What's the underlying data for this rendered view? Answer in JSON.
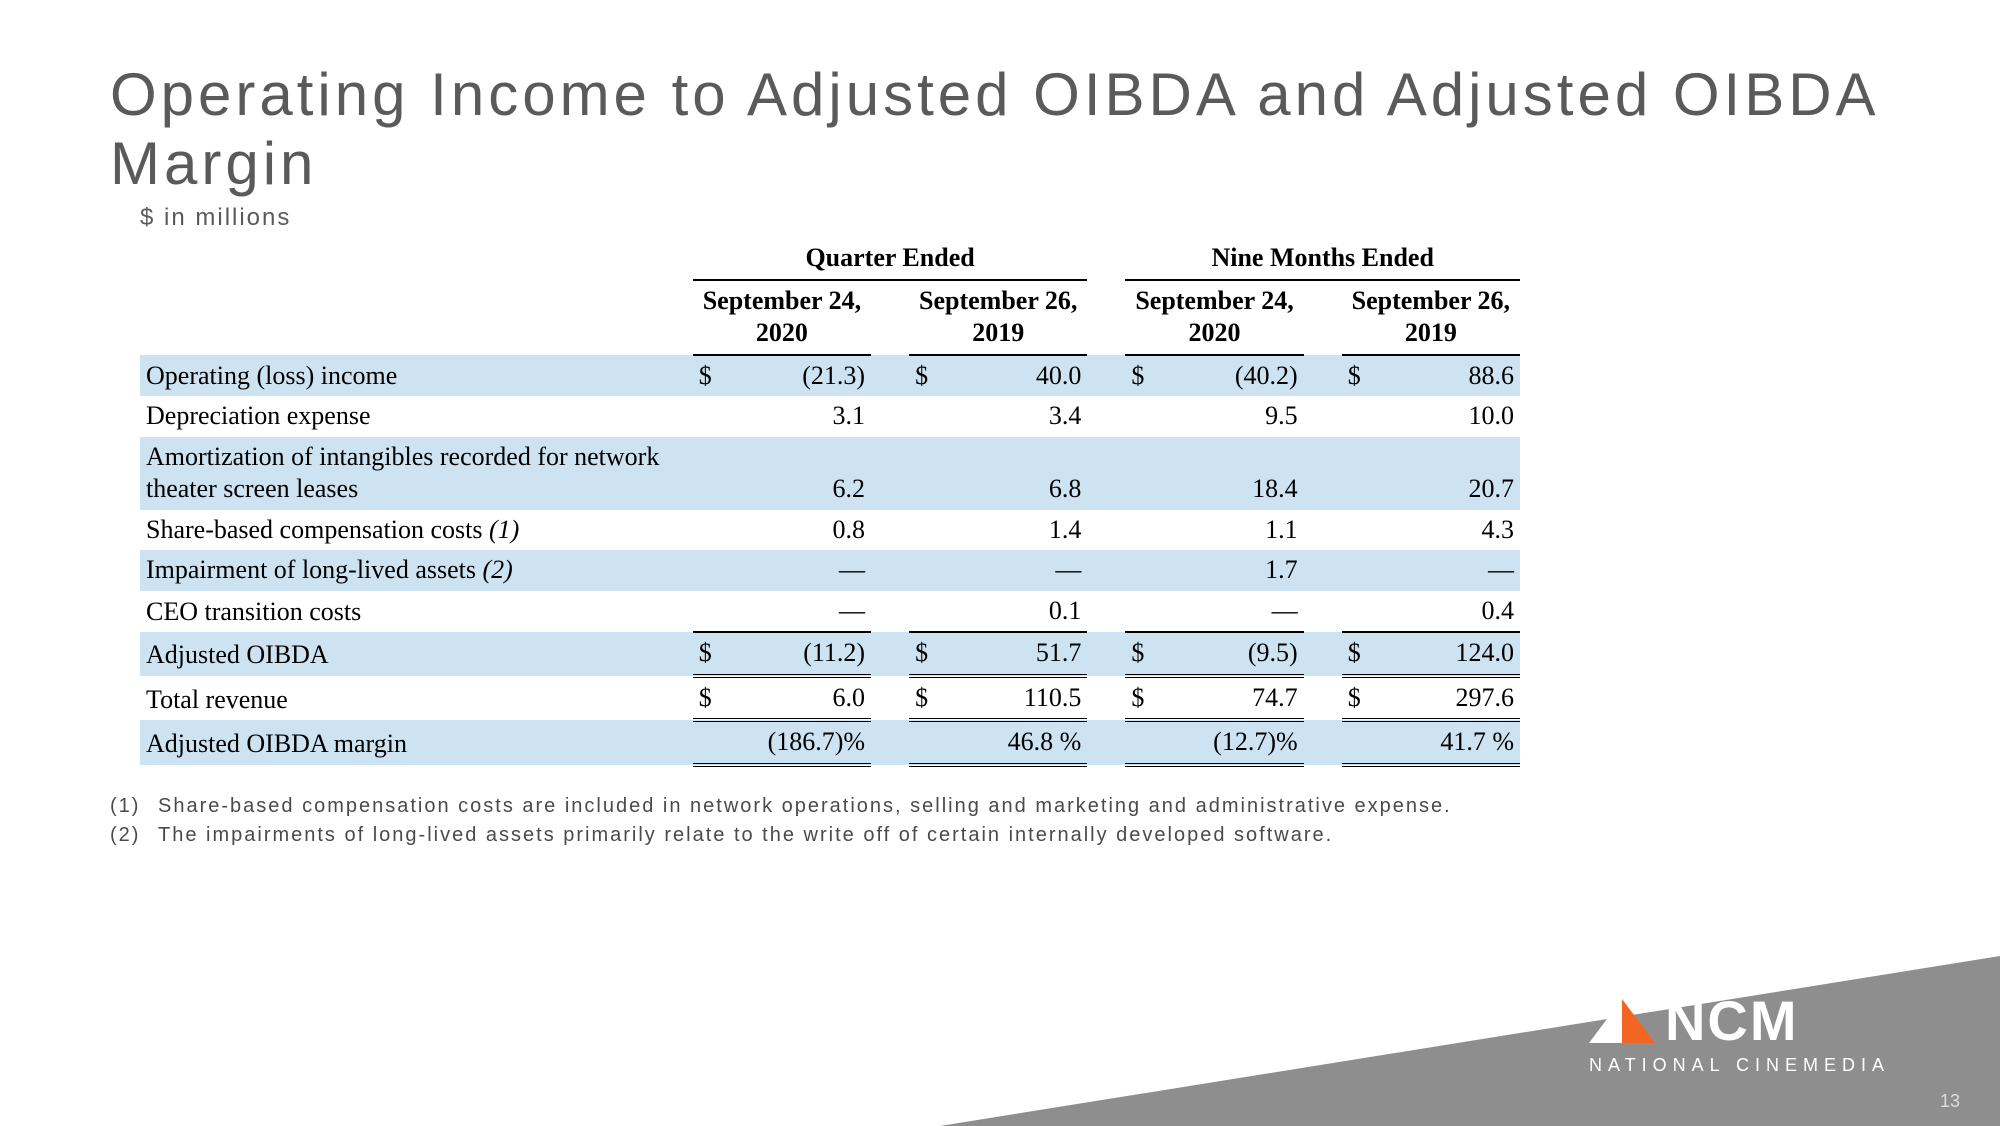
{
  "title": "Operating Income to Adjusted OIBDA and Adjusted OIBDA Margin",
  "subtitle": "$ in millions",
  "table": {
    "group_headers": [
      "Quarter Ended",
      "Nine Months Ended"
    ],
    "col_headers": [
      "September 24, 2020",
      "September 26, 2019",
      "September 24, 2020",
      "September 26, 2019"
    ],
    "rows": [
      {
        "label": "Operating (loss) income",
        "indent": false,
        "shaded": true,
        "dollar": true,
        "vals": [
          "(21.3)",
          "40.0",
          "(40.2)",
          "88.6"
        ],
        "style": "plain"
      },
      {
        "label": "Depreciation expense",
        "indent": true,
        "shaded": false,
        "dollar": false,
        "vals": [
          "3.1",
          "3.4",
          "9.5",
          "10.0"
        ],
        "style": "plain"
      },
      {
        "label": "Amortization of intangibles recorded for network theater screen leases",
        "indent": true,
        "shaded": true,
        "dollar": false,
        "vals": [
          "6.2",
          "6.8",
          "18.4",
          "20.7"
        ],
        "style": "plain"
      },
      {
        "label": "Share-based compensation costs (1)",
        "indent": true,
        "shaded": false,
        "dollar": false,
        "vals": [
          "0.8",
          "1.4",
          "1.1",
          "4.3"
        ],
        "style": "plain"
      },
      {
        "label": "Impairment of long-lived assets (2)",
        "indent": true,
        "shaded": true,
        "dollar": false,
        "vals": [
          "—",
          "—",
          "1.7",
          "—"
        ],
        "style": "plain"
      },
      {
        "label": "CEO transition costs",
        "indent": true,
        "shaded": false,
        "dollar": false,
        "vals": [
          "—",
          "0.1",
          "—",
          "0.4"
        ],
        "style": "plain"
      },
      {
        "label": "Adjusted OIBDA",
        "indent": false,
        "shaded": true,
        "dollar": true,
        "vals": [
          "(11.2)",
          "51.7",
          "(9.5)",
          "124.0"
        ],
        "style": "total"
      },
      {
        "label": "Total revenue",
        "indent": false,
        "shaded": false,
        "dollar": true,
        "vals": [
          "6.0",
          "110.5",
          "74.7",
          "297.6"
        ],
        "style": "total"
      },
      {
        "label": "Adjusted OIBDA margin",
        "indent": false,
        "shaded": true,
        "dollar": false,
        "vals": [
          "(186.7)%",
          "46.8 %",
          "(12.7)%",
          "41.7 %"
        ],
        "style": "total"
      }
    ],
    "colors": {
      "shade": "#cde3f1",
      "rule": "#000000"
    }
  },
  "footnotes": [
    {
      "num": "(1)",
      "text": "Share-based compensation costs are included in network operations, selling and marketing and administrative expense."
    },
    {
      "num": "(2)",
      "text": "The impairments of long-lived assets primarily relate to the write off of certain internally developed software."
    }
  ],
  "brand": {
    "name": "NCM",
    "tagline": "NATIONAL CINEMEDIA",
    "wedge_color": "#8e8e8e",
    "accent": "#f26522"
  },
  "page_number": "13"
}
